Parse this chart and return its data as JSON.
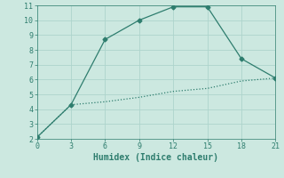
{
  "line1_x": [
    0,
    3,
    6,
    9,
    12,
    15,
    18,
    21
  ],
  "line1_y": [
    2.1,
    4.3,
    8.7,
    10.0,
    10.9,
    10.9,
    7.4,
    6.1
  ],
  "line2_x": [
    0,
    3,
    6,
    9,
    12,
    15,
    18,
    21
  ],
  "line2_y": [
    2.1,
    4.3,
    4.5,
    4.8,
    5.2,
    5.4,
    5.9,
    6.1
  ],
  "line_color": "#2e7d6e",
  "xlabel": "Humidex (Indice chaleur)",
  "xlim": [
    0,
    21
  ],
  "ylim": [
    2,
    11
  ],
  "xticks": [
    0,
    3,
    6,
    9,
    12,
    15,
    18,
    21
  ],
  "yticks": [
    2,
    3,
    4,
    5,
    6,
    7,
    8,
    9,
    10,
    11
  ],
  "bg_color": "#cce8e0",
  "grid_color": "#aed4cc"
}
